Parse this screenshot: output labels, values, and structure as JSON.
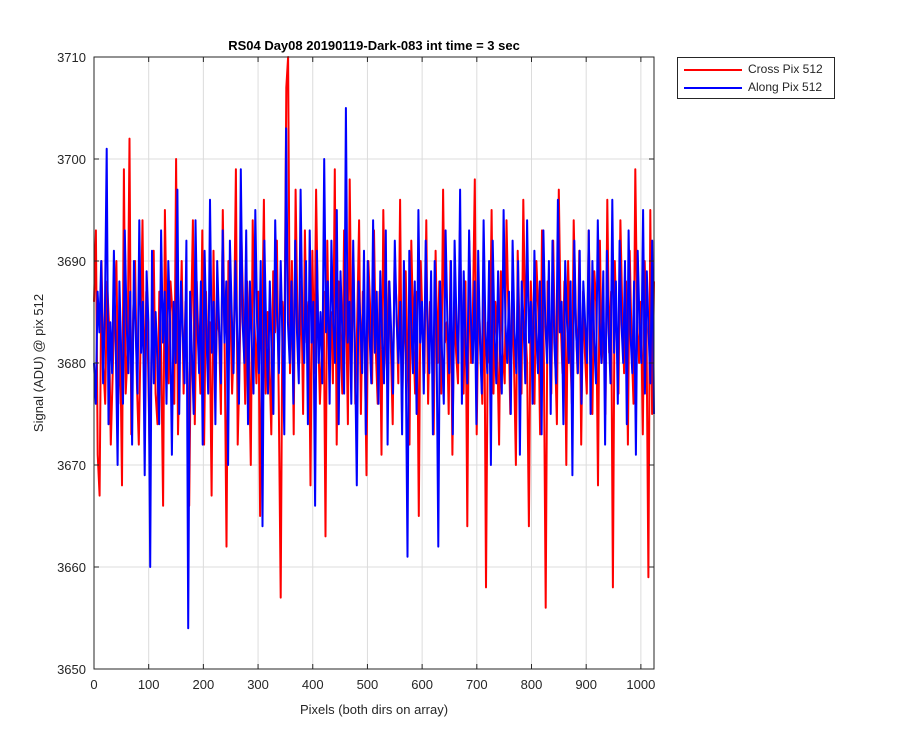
{
  "chart_data": {
    "type": "line",
    "title": "RS04 Day08 20190119-Dark-083 int time = 3 sec",
    "xlabel": "Pixels (both dirs on array)",
    "ylabel": "Signal (ADU) @ pix 512",
    "xlim": [
      0,
      1024
    ],
    "ylim": [
      3650,
      3710
    ],
    "xticks": [
      0,
      100,
      200,
      300,
      400,
      500,
      600,
      700,
      800,
      900,
      1000
    ],
    "yticks": [
      3650,
      3660,
      3670,
      3680,
      3690,
      3700,
      3710
    ],
    "grid": true,
    "legend_placement": "outside-top-right",
    "series_mean_estimate": 3683,
    "series": [
      {
        "name": "Cross Pix 512",
        "color": "#ff0000",
        "values": [
          3686,
          3693,
          3671,
          3667,
          3690,
          3680,
          3676,
          3688,
          3684,
          3672,
          3679,
          3686,
          3690,
          3676,
          3683,
          3668,
          3699,
          3677,
          3681,
          3702,
          3673,
          3685,
          3690,
          3678,
          3672,
          3683,
          3694,
          3676,
          3687,
          3680,
          3669,
          3685,
          3691,
          3677,
          3674,
          3687,
          3681,
          3666,
          3695,
          3683,
          3678,
          3688,
          3685,
          3676,
          3700,
          3673,
          3682,
          3690,
          3677,
          3686,
          3679,
          3666,
          3684,
          3694,
          3674,
          3688,
          3682,
          3677,
          3693,
          3672,
          3687,
          3680,
          3684,
          3667,
          3691,
          3678,
          3685,
          3683,
          3675,
          3695,
          3681,
          3662,
          3690,
          3686,
          3677,
          3683,
          3699,
          3672,
          3680,
          3692,
          3685,
          3676,
          3688,
          3681,
          3670,
          3694,
          3684,
          3678,
          3687,
          3665,
          3682,
          3696,
          3677,
          3685,
          3680,
          3673,
          3689,
          3683,
          3692,
          3676,
          3657,
          3686,
          3681,
          3707,
          3710,
          3679,
          3690,
          3673,
          3697,
          3684,
          3680,
          3688,
          3675,
          3693,
          3682,
          3686,
          3668,
          3691,
          3679,
          3697,
          3684,
          3676,
          3681,
          3687,
          3663,
          3692,
          3680,
          3685,
          3678,
          3699,
          3672,
          3688,
          3683,
          3677,
          3693,
          3686,
          3674,
          3698,
          3681,
          3690,
          3676,
          3684,
          3694,
          3675,
          3687,
          3682,
          3669,
          3690,
          3685,
          3678,
          3693,
          3681,
          3676,
          3687,
          3671,
          3695,
          3683,
          3679,
          3688,
          3682,
          3674,
          3690,
          3686,
          3678,
          3696,
          3675,
          3684,
          3689,
          3680,
          3672,
          3692,
          3683,
          3677,
          3687,
          3665,
          3690,
          3684,
          3679,
          3694,
          3676,
          3686,
          3682,
          3673,
          3691,
          3680,
          3688,
          3677,
          3697,
          3682,
          3684,
          3675,
          3690,
          3671,
          3686,
          3681,
          3678,
          3693,
          3684,
          3677,
          3688,
          3664,
          3692,
          3680,
          3685,
          3698,
          3673,
          3687,
          3682,
          3676,
          3690,
          3658,
          3684,
          3680,
          3695,
          3677,
          3686,
          3682,
          3672,
          3689,
          3681,
          3678,
          3694,
          3685,
          3675,
          3687,
          3680,
          3670,
          3691,
          3683,
          3677,
          3696,
          3684,
          3680,
          3664,
          3688,
          3682,
          3676,
          3690,
          3685,
          3673,
          3693,
          3680,
          3656,
          3688,
          3683,
          3677,
          3692,
          3681,
          3674,
          3697,
          3684,
          3679,
          3688,
          3670,
          3690,
          3682,
          3676,
          3694,
          3685,
          3679,
          3691,
          3672,
          3687,
          3681,
          3677,
          3693,
          3683,
          3675,
          3689,
          3686,
          3668,
          3692,
          3680,
          3684,
          3675,
          3696,
          3681,
          3687,
          3658,
          3690,
          3683,
          3677,
          3694,
          3685,
          3679,
          3688,
          3672,
          3691,
          3682,
          3676,
          3699,
          3684,
          3680,
          3686,
          3673,
          3690,
          3683,
          3659,
          3695,
          3675,
          3688
        ]
      },
      {
        "name": "Along Pix 512",
        "color": "#0000ff",
        "values": [
          3680,
          3676,
          3687,
          3683,
          3690,
          3678,
          3685,
          3701,
          3674,
          3684,
          3679,
          3691,
          3682,
          3670,
          3688,
          3681,
          3676,
          3693,
          3684,
          3679,
          3687,
          3672,
          3690,
          3683,
          3677,
          3694,
          3681,
          3686,
          3669,
          3689,
          3684,
          3660,
          3691,
          3678,
          3685,
          3680,
          3674,
          3693,
          3682,
          3687,
          3676,
          3690,
          3684,
          3671,
          3686,
          3680,
          3697,
          3675,
          3688,
          3683,
          3678,
          3692,
          3654,
          3687,
          3681,
          3675,
          3694,
          3684,
          3679,
          3688,
          3672,
          3691,
          3683,
          3677,
          3696,
          3681,
          3686,
          3674,
          3690,
          3684,
          3678,
          3693,
          3682,
          3688,
          3670,
          3692,
          3685,
          3679,
          3690,
          3683,
          3676,
          3699,
          3684,
          3680,
          3693,
          3674,
          3688,
          3682,
          3677,
          3695,
          3684,
          3679,
          3690,
          3664,
          3692,
          3683,
          3677,
          3688,
          3681,
          3675,
          3694,
          3685,
          3679,
          3690,
          3682,
          3673,
          3703,
          3684,
          3680,
          3688,
          3676,
          3692,
          3683,
          3678,
          3697,
          3684,
          3680,
          3690,
          3674,
          3693,
          3682,
          3686,
          3666,
          3691,
          3680,
          3685,
          3678,
          3700,
          3683,
          3688,
          3676,
          3692,
          3684,
          3680,
          3695,
          3674,
          3689,
          3683,
          3677,
          3705,
          3682,
          3686,
          3676,
          3692,
          3681,
          3668,
          3688,
          3684,
          3679,
          3691,
          3673,
          3690,
          3683,
          3678,
          3694,
          3681,
          3687,
          3676,
          3689,
          3682,
          3678,
          3693,
          3672,
          3688,
          3683,
          3677,
          3692,
          3684,
          3680,
          3686,
          3673,
          3690,
          3681,
          3661,
          3691,
          3684,
          3679,
          3688,
          3675,
          3695,
          3682,
          3686,
          3677,
          3692,
          3684,
          3679,
          3689,
          3673,
          3690,
          3683,
          3662,
          3688,
          3681,
          3676,
          3693,
          3684,
          3679,
          3690,
          3673,
          3692,
          3684,
          3680,
          3697,
          3676,
          3689,
          3682,
          3678,
          3693,
          3684,
          3680,
          3688,
          3674,
          3691,
          3682,
          3677,
          3694,
          3683,
          3679,
          3690,
          3670,
          3692,
          3683,
          3678,
          3689,
          3681,
          3677,
          3695,
          3684,
          3680,
          3687,
          3675,
          3692,
          3683,
          3679,
          3690,
          3671,
          3688,
          3684,
          3678,
          3694,
          3682,
          3686,
          3676,
          3691,
          3683,
          3679,
          3688,
          3673,
          3693,
          3684,
          3680,
          3690,
          3675,
          3692,
          3682,
          3678,
          3696,
          3683,
          3686,
          3674,
          3690,
          3684,
          3680,
          3688,
          3669,
          3692,
          3683,
          3679,
          3691,
          3676,
          3688,
          3684,
          3680,
          3693,
          3675,
          3690,
          3682,
          3678,
          3694,
          3684,
          3680,
          3689,
          3672,
          3691,
          3683,
          3678,
          3696,
          3681,
          3688,
          3676,
          3692,
          3684,
          3680,
          3690,
          3674,
          3693,
          3683,
          3679,
          3688,
          3671,
          3691,
          3684,
          3680,
          3695,
          3677,
          3689,
          3683,
          3678,
          3692,
          3675
        ]
      }
    ]
  }
}
